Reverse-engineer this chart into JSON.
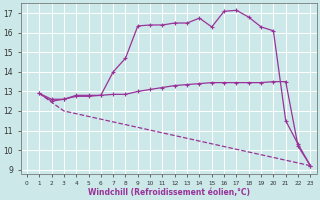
{
  "xlabel": "Windchill (Refroidissement éolien,°C)",
  "bg_color": "#cce8e8",
  "grid_color": "#ffffff",
  "line_color": "#993399",
  "ylim": [
    8.8,
    17.5
  ],
  "xlim": [
    -0.5,
    23.5
  ],
  "yticks": [
    9,
    10,
    11,
    12,
    13,
    14,
    15,
    16,
    17
  ],
  "xticks": [
    0,
    1,
    2,
    3,
    4,
    5,
    6,
    7,
    8,
    9,
    10,
    11,
    12,
    13,
    14,
    15,
    16,
    17,
    18,
    19,
    20,
    21,
    22,
    23
  ],
  "line1_x": [
    1,
    2,
    3,
    4,
    5,
    6,
    7,
    8,
    9,
    10,
    11,
    12,
    13,
    14,
    15,
    16,
    17,
    18,
    19,
    20,
    21,
    22,
    23
  ],
  "line1_y": [
    12.9,
    12.5,
    12.6,
    12.8,
    12.8,
    12.8,
    14.0,
    14.7,
    16.35,
    16.4,
    16.4,
    16.5,
    16.5,
    16.75,
    16.3,
    17.1,
    17.15,
    16.8,
    16.3,
    16.1,
    11.5,
    10.3,
    9.2
  ],
  "line2_x": [
    1,
    2,
    3,
    4,
    5,
    6,
    7,
    8,
    9,
    10,
    11,
    12,
    13,
    14,
    15,
    16,
    17,
    18,
    19,
    20,
    21,
    22,
    23
  ],
  "line2_y": [
    12.9,
    12.6,
    12.6,
    12.75,
    12.75,
    12.8,
    12.85,
    12.85,
    13.0,
    13.1,
    13.2,
    13.3,
    13.35,
    13.4,
    13.45,
    13.45,
    13.45,
    13.45,
    13.45,
    13.5,
    13.5,
    10.2,
    9.2
  ],
  "line3_x": [
    1,
    3,
    23
  ],
  "line3_y": [
    12.9,
    12.0,
    9.2
  ],
  "xtick_labels": [
    "0",
    "1",
    "2",
    "3",
    "4",
    "5",
    "6",
    "7",
    "8",
    "9",
    "10",
    "11",
    "12",
    "13",
    "14",
    "15",
    "16",
    "17",
    "18",
    "19",
    "20",
    "21",
    "22",
    "23"
  ],
  "marker": "+"
}
